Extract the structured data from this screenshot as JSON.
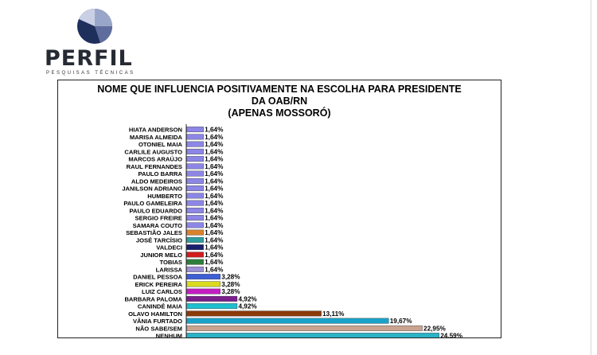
{
  "logo": {
    "brand": "PERFIL",
    "tagline": "PESQUISAS TÉCNICAS",
    "colors": [
      "#1f2f5c",
      "#5f6d9e",
      "#9aa6c9",
      "#c9d0e6"
    ]
  },
  "chart_data": {
    "type": "bar",
    "orientation": "horizontal",
    "title": [
      "NOME QUE INFLUENCIA POSITIVAMENTE NA ESCOLHA PARA PRESIDENTE",
      "DA OAB/RN",
      "(APENAS MOSSORÓ)"
    ],
    "categories": [
      "HIATA ANDERSON",
      "MARISA ALMEIDA",
      "OTONIEL MAIA",
      "CARLILE AUGUSTO",
      "MARCOS ARAÚJO",
      "RAUL FERNANDES",
      "PAULO BARRA",
      "ALDO MEDEIROS",
      "JANILSON ADRIANO",
      "HUMBERTO",
      "PAULO GAMELEIRA",
      "PAULO EDUARDO",
      "SERGIO FREIRE",
      "SAMARA COUTO",
      "SEBASTIÃO JALES",
      "JOSÉ TARCÍSIO",
      "VALDECI",
      "JUNIOR MELO",
      "TOBIAS",
      "LARISSA",
      "DANIEL PESSOA",
      "ERICK PEREIRA",
      "LUIZ CARLOS",
      "BARBARA PALOMA",
      "CANINDÉ MAIA",
      "OLAVO HAMILTON",
      "VÂNIA FURTADO",
      "NÃO SABE/SEM",
      "NENHUM"
    ],
    "values": [
      1.64,
      1.64,
      1.64,
      1.64,
      1.64,
      1.64,
      1.64,
      1.64,
      1.64,
      1.64,
      1.64,
      1.64,
      1.64,
      1.64,
      1.64,
      1.64,
      1.64,
      1.64,
      1.64,
      1.64,
      3.28,
      3.28,
      3.28,
      4.92,
      4.92,
      13.11,
      19.67,
      22.95,
      24.59
    ],
    "value_labels": [
      "1,64%",
      "1,64%",
      "1,64%",
      "1,64%",
      "1,64%",
      "1,64%",
      "1,64%",
      "1,64%",
      "1,64%",
      "1,64%",
      "1,64%",
      "1,64%",
      "1,64%",
      "1,64%",
      "1,64%",
      "1,64%",
      "1,64%",
      "1,64%",
      "1,64%",
      "1,64%",
      "3,28%",
      "3,28%",
      "3,28%",
      "4,92%",
      "4,92%",
      "13,11%",
      "19,67%",
      "22,95%",
      "24,59%"
    ],
    "colors": [
      "#8c86e6",
      "#8c86e6",
      "#8c86e6",
      "#8c86e6",
      "#8c86e6",
      "#8c86e6",
      "#8c86e6",
      "#8c86e6",
      "#8c86e6",
      "#8c86e6",
      "#8c86e6",
      "#8c86e6",
      "#8c86e6",
      "#8c86e6",
      "#d9822b",
      "#2f9e9e",
      "#1a1f6e",
      "#d01c1c",
      "#2e7d3a",
      "#9b8fd6",
      "#3d5fd6",
      "#dada1e",
      "#c21ec2",
      "#7a1e8c",
      "#1ebfcf",
      "#8b3a0a",
      "#1aa3c8",
      "#c9a48f",
      "#2ab3c7"
    ],
    "xlim": [
      0,
      25
    ],
    "grid": false,
    "legend": "none"
  }
}
